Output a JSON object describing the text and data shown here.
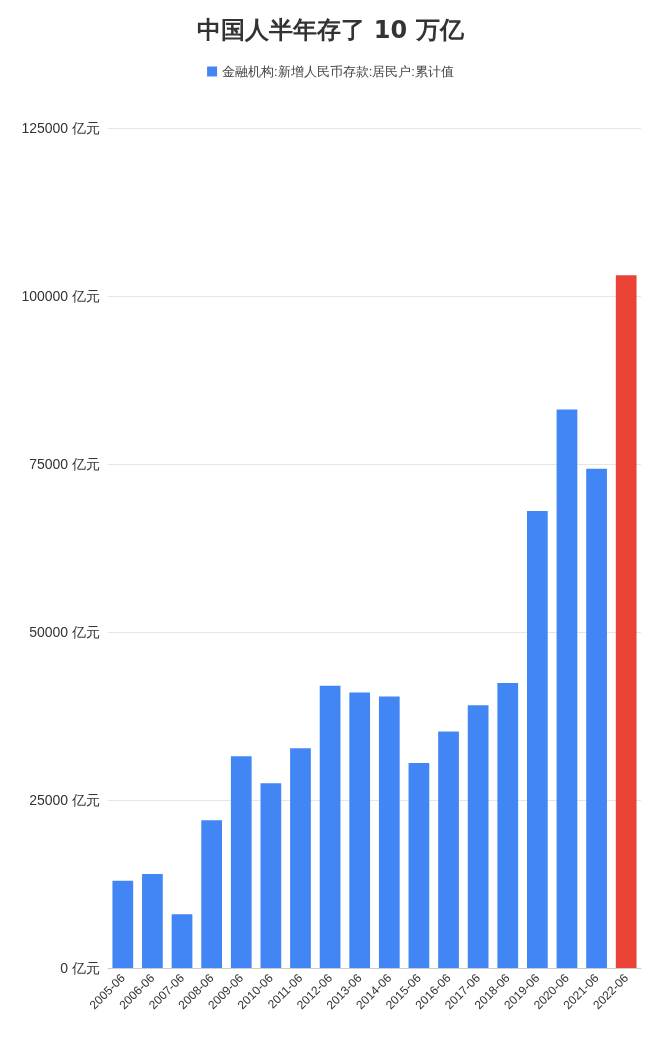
{
  "chart_data": {
    "type": "bar",
    "title": "中国人半年存了 10 万亿",
    "categories": [
      "2005-06",
      "2006-06",
      "2007-06",
      "2008-06",
      "2009-06",
      "2010-06",
      "2011-06",
      "2012-06",
      "2013-06",
      "2014-06",
      "2015-06",
      "2016-06",
      "2017-06",
      "2018-06",
      "2019-06",
      "2020-06",
      "2021-06",
      "2022-06"
    ],
    "series": [
      {
        "name": "金融机构:新增人民币存款:居民户:累计值",
        "color": "#4285f4",
        "colors": [
          "#4285f4",
          "#4285f4",
          "#4285f4",
          "#4285f4",
          "#4285f4",
          "#4285f4",
          "#4285f4",
          "#4285f4",
          "#4285f4",
          "#4285f4",
          "#4285f4",
          "#4285f4",
          "#4285f4",
          "#4285f4",
          "#4285f4",
          "#4285f4",
          "#4285f4",
          "#ea4335"
        ],
        "values": [
          13000,
          14000,
          8000,
          22000,
          31500,
          27500,
          32700,
          42000,
          41000,
          40400,
          30500,
          35200,
          39100,
          42400,
          68000,
          83100,
          74300,
          103100
        ]
      }
    ],
    "ylim": [
      0,
      125000
    ],
    "yticks": [
      {
        "value": 0,
        "label": "0 亿元"
      },
      {
        "value": 25000,
        "label": "25000 亿元"
      },
      {
        "value": 50000,
        "label": "50000 亿元"
      },
      {
        "value": 75000,
        "label": "75000 亿元"
      },
      {
        "value": 100000,
        "label": "100000 亿元"
      },
      {
        "value": 125000,
        "label": "125000 亿元"
      }
    ],
    "grid": "y",
    "legend": "top"
  }
}
